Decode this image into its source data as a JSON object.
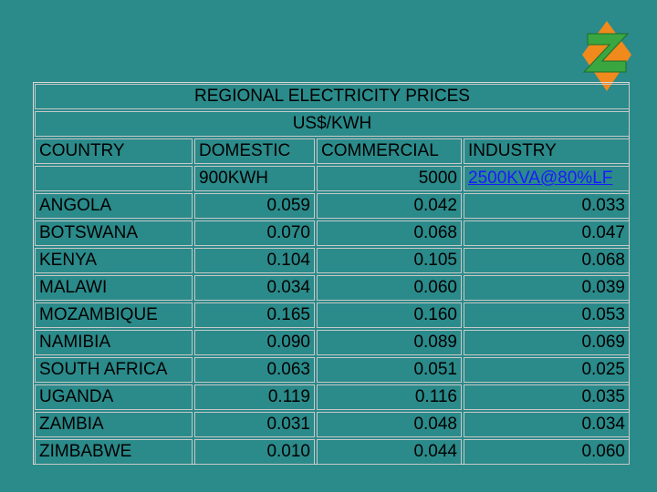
{
  "header": {
    "title": "REGIONAL ELECTRICITY PRICES",
    "subtitle": "US$/KWH"
  },
  "table": {
    "columns": [
      "COUNTRY",
      "DOMESTIC",
      "COMMERCIAL",
      "INDUSTRY"
    ],
    "units": [
      "900KWH",
      "5000",
      "2500KVA@80%LF"
    ],
    "rows": [
      [
        "ANGOLA",
        "0.059",
        "0.042",
        "0.033"
      ],
      [
        "BOTSWANA",
        "0.070",
        "0.068",
        "0.047"
      ],
      [
        "KENYA",
        "0.104",
        "0.105",
        "0.068"
      ],
      [
        "MALAWI",
        "0.034",
        "0.060",
        "0.039"
      ],
      [
        "MOZAMBIQUE",
        "0.165",
        "0.160",
        "0.053"
      ],
      [
        "NAMIBIA",
        "0.090",
        "0.089",
        "0.069"
      ],
      [
        "SOUTH AFRICA",
        "0.063",
        "0.051",
        "0.025"
      ],
      [
        "UGANDA",
        "0.119",
        "0.116",
        "0.035"
      ],
      [
        "ZAMBIA",
        "0.031",
        "0.048",
        "0.034"
      ],
      [
        "ZIMBABWE",
        "0.010",
        "0.044",
        "0.060"
      ]
    ]
  }
}
